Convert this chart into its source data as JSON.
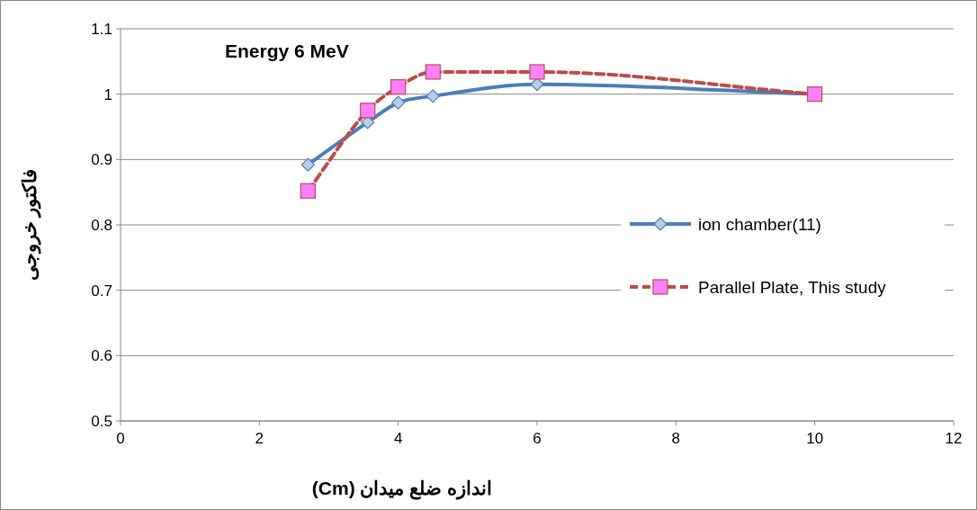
{
  "chart_data": {
    "type": "line",
    "title": "Energy 6 MeV",
    "xlabel": "اندازه ضلع میدان (Cm)",
    "ylabel": "فاکتور خروجی",
    "xlim": [
      0,
      12
    ],
    "xticks": [
      0,
      2,
      4,
      6,
      8,
      10,
      12
    ],
    "ylim": [
      0.5,
      1.1
    ],
    "yticks": [
      0.5,
      0.6,
      0.7,
      0.8,
      0.9,
      {
        "value": 1.0,
        "label": "1"
      },
      1.1
    ],
    "grid": "y",
    "legend": "right",
    "series": [
      {
        "name": "ion chamber(11)",
        "color": "#4a7ebb",
        "marker": "diamond",
        "line_style": "solid",
        "x": [
          2.7,
          3.56,
          4.0,
          4.5,
          6,
          10
        ],
        "values": [
          0.892,
          0.957,
          0.987,
          0.997,
          1.015,
          1.0
        ]
      },
      {
        "name": "Parallel Plate, This study",
        "color": "#be4b48",
        "marker": "square",
        "line_style": "dashed",
        "x": [
          2.7,
          3.56,
          4.0,
          4.5,
          6,
          10
        ],
        "values": [
          0.852,
          0.975,
          1.011,
          1.034,
          1.034,
          1.0
        ]
      }
    ]
  }
}
